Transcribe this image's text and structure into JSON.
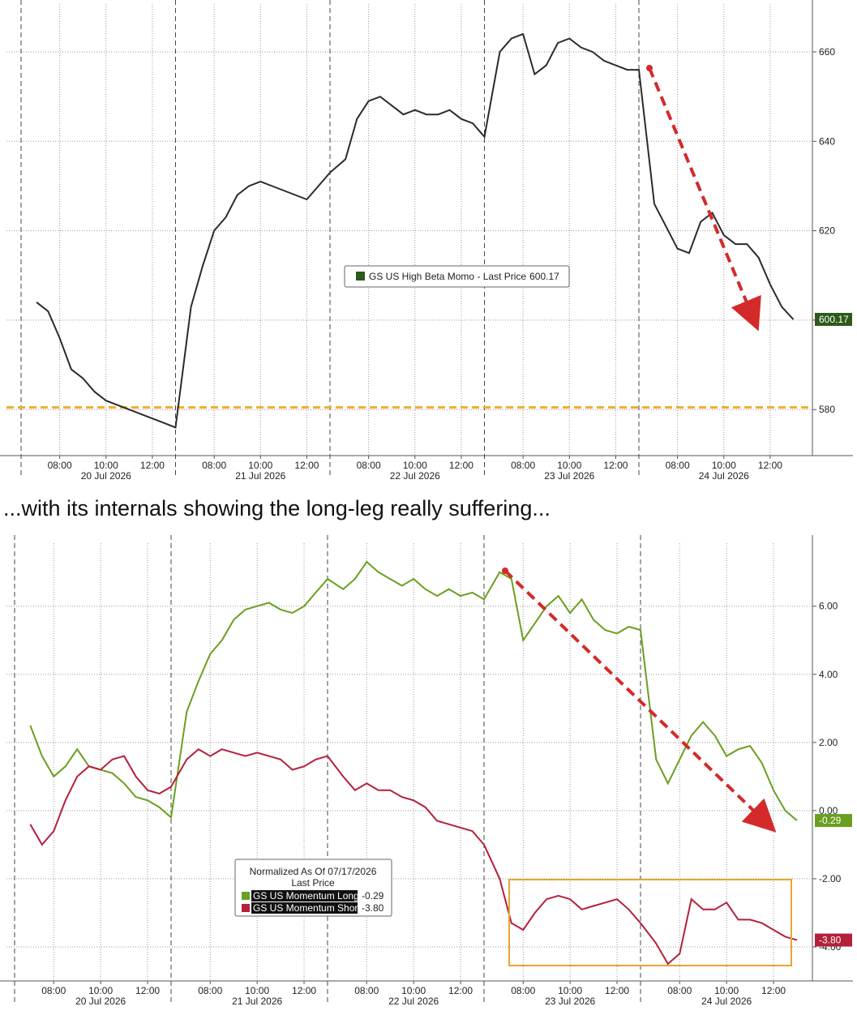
{
  "caption": "...with its internals showing the long-leg really suffering...",
  "chart_data": [
    {
      "type": "line",
      "x": [
        "20 Jul 2026 07:00",
        "20 Jul 2026 07:30",
        "20 Jul 2026 08:00",
        "20 Jul 2026 08:30",
        "20 Jul 2026 09:00",
        "20 Jul 2026 09:30",
        "20 Jul 2026 10:00",
        "20 Jul 2026 10:30",
        "20 Jul 2026 11:00",
        "20 Jul 2026 11:30",
        "20 Jul 2026 12:00",
        "20 Jul 2026 12:30",
        "20 Jul 2026 13:00",
        "21 Jul 2026 07:00",
        "21 Jul 2026 07:30",
        "21 Jul 2026 08:00",
        "21 Jul 2026 08:30",
        "21 Jul 2026 09:00",
        "21 Jul 2026 09:30",
        "21 Jul 2026 10:00",
        "21 Jul 2026 10:30",
        "21 Jul 2026 11:00",
        "21 Jul 2026 11:30",
        "21 Jul 2026 12:00",
        "21 Jul 2026 12:30",
        "21 Jul 2026 13:00",
        "22 Jul 2026 07:00",
        "22 Jul 2026 07:30",
        "22 Jul 2026 08:00",
        "22 Jul 2026 08:30",
        "22 Jul 2026 09:00",
        "22 Jul 2026 09:30",
        "22 Jul 2026 10:00",
        "22 Jul 2026 10:30",
        "22 Jul 2026 11:00",
        "22 Jul 2026 11:30",
        "22 Jul 2026 12:00",
        "22 Jul 2026 12:30",
        "22 Jul 2026 13:00",
        "23 Jul 2026 07:00",
        "23 Jul 2026 07:30",
        "23 Jul 2026 08:00",
        "23 Jul 2026 08:30",
        "23 Jul 2026 09:00",
        "23 Jul 2026 09:30",
        "23 Jul 2026 10:00",
        "23 Jul 2026 10:30",
        "23 Jul 2026 11:00",
        "23 Jul 2026 11:30",
        "23 Jul 2026 12:00",
        "23 Jul 2026 12:30",
        "23 Jul 2026 13:00",
        "24 Jul 2026 07:00",
        "24 Jul 2026 07:30",
        "24 Jul 2026 08:00",
        "24 Jul 2026 08:30",
        "24 Jul 2026 09:00",
        "24 Jul 2026 09:30",
        "24 Jul 2026 10:00",
        "24 Jul 2026 10:30",
        "24 Jul 2026 11:00",
        "24 Jul 2026 11:30",
        "24 Jul 2026 12:00",
        "24 Jul 2026 12:30",
        "24 Jul 2026 13:00"
      ],
      "xticks": [
        {
          "value": "20 Jul 2026 08:00",
          "label": "08:00"
        },
        {
          "value": "20 Jul 2026 10:00",
          "label": "10:00"
        },
        {
          "value": "20 Jul 2026 12:00",
          "label": "12:00"
        },
        {
          "value": "21 Jul 2026 08:00",
          "label": "08:00"
        },
        {
          "value": "21 Jul 2026 10:00",
          "label": "10:00"
        },
        {
          "value": "21 Jul 2026 12:00",
          "label": "12:00"
        },
        {
          "value": "22 Jul 2026 08:00",
          "label": "08:00"
        },
        {
          "value": "22 Jul 2026 10:00",
          "label": "10:00"
        },
        {
          "value": "22 Jul 2026 12:00",
          "label": "12:00"
        },
        {
          "value": "23 Jul 2026 08:00",
          "label": "08:00"
        },
        {
          "value": "23 Jul 2026 10:00",
          "label": "10:00"
        },
        {
          "value": "23 Jul 2026 12:00",
          "label": "12:00"
        },
        {
          "value": "24 Jul 2026 08:00",
          "label": "08:00"
        },
        {
          "value": "24 Jul 2026 10:00",
          "label": "10:00"
        },
        {
          "value": "24 Jul 2026 12:00",
          "label": "12:00"
        }
      ],
      "xgroups": [
        "20 Jul 2026",
        "21 Jul 2026",
        "22 Jul 2026",
        "23 Jul 2026",
        "24 Jul 2026"
      ],
      "ylim": [
        569.7,
        670.7
      ],
      "yticks": [
        580,
        600,
        620,
        640,
        660
      ],
      "grid": true,
      "legend_value_title": "Last Price",
      "series": [
        {
          "name": "GS US High Beta Momo",
          "color": "#2b2b2b",
          "tag_color": "#2d5a1b",
          "values": [
            604,
            602,
            596,
            589,
            587,
            584,
            582,
            581,
            580,
            579,
            578,
            577,
            576,
            603,
            612,
            620,
            623,
            628,
            630,
            631,
            630,
            629,
            628,
            627,
            630,
            633,
            636,
            645,
            649,
            650,
            648,
            646,
            647,
            646,
            646,
            647,
            645,
            644,
            641,
            660,
            663,
            664,
            655,
            657,
            662,
            663,
            661,
            660,
            658,
            657,
            656,
            656,
            626,
            621,
            616,
            615,
            622,
            624,
            619,
            617,
            617,
            614,
            608,
            603,
            600.17
          ]
        }
      ],
      "hlines": [
        {
          "value": 580.5,
          "color": "#f0b030"
        }
      ]
    },
    {
      "type": "line",
      "x": [
        "20 Jul 2026 07:00",
        "20 Jul 2026 07:30",
        "20 Jul 2026 08:00",
        "20 Jul 2026 08:30",
        "20 Jul 2026 09:00",
        "20 Jul 2026 09:30",
        "20 Jul 2026 10:00",
        "20 Jul 2026 10:30",
        "20 Jul 2026 11:00",
        "20 Jul 2026 11:30",
        "20 Jul 2026 12:00",
        "20 Jul 2026 12:30",
        "20 Jul 2026 13:00",
        "21 Jul 2026 07:00",
        "21 Jul 2026 07:30",
        "21 Jul 2026 08:00",
        "21 Jul 2026 08:30",
        "21 Jul 2026 09:00",
        "21 Jul 2026 09:30",
        "21 Jul 2026 10:00",
        "21 Jul 2026 10:30",
        "21 Jul 2026 11:00",
        "21 Jul 2026 11:30",
        "21 Jul 2026 12:00",
        "21 Jul 2026 12:30",
        "21 Jul 2026 13:00",
        "22 Jul 2026 07:00",
        "22 Jul 2026 07:30",
        "22 Jul 2026 08:00",
        "22 Jul 2026 08:30",
        "22 Jul 2026 09:00",
        "22 Jul 2026 09:30",
        "22 Jul 2026 10:00",
        "22 Jul 2026 10:30",
        "22 Jul 2026 11:00",
        "22 Jul 2026 11:30",
        "22 Jul 2026 12:00",
        "22 Jul 2026 12:30",
        "22 Jul 2026 13:00",
        "23 Jul 2026 07:00",
        "23 Jul 2026 07:30",
        "23 Jul 2026 08:00",
        "23 Jul 2026 08:30",
        "23 Jul 2026 09:00",
        "23 Jul 2026 09:30",
        "23 Jul 2026 10:00",
        "23 Jul 2026 10:30",
        "23 Jul 2026 11:00",
        "23 Jul 2026 11:30",
        "23 Jul 2026 12:00",
        "23 Jul 2026 12:30",
        "23 Jul 2026 13:00",
        "24 Jul 2026 07:00",
        "24 Jul 2026 07:30",
        "24 Jul 2026 08:00",
        "24 Jul 2026 08:30",
        "24 Jul 2026 09:00",
        "24 Jul 2026 09:30",
        "24 Jul 2026 10:00",
        "24 Jul 2026 10:30",
        "24 Jul 2026 11:00",
        "24 Jul 2026 11:30",
        "24 Jul 2026 12:00",
        "24 Jul 2026 12:30",
        "24 Jul 2026 13:00"
      ],
      "xticks": [
        {
          "value": "20 Jul 2026 08:00",
          "label": "08:00"
        },
        {
          "value": "20 Jul 2026 10:00",
          "label": "10:00"
        },
        {
          "value": "20 Jul 2026 12:00",
          "label": "12:00"
        },
        {
          "value": "21 Jul 2026 08:00",
          "label": "08:00"
        },
        {
          "value": "21 Jul 2026 10:00",
          "label": "10:00"
        },
        {
          "value": "21 Jul 2026 12:00",
          "label": "12:00"
        },
        {
          "value": "22 Jul 2026 08:00",
          "label": "08:00"
        },
        {
          "value": "22 Jul 2026 10:00",
          "label": "10:00"
        },
        {
          "value": "22 Jul 2026 12:00",
          "label": "12:00"
        },
        {
          "value": "23 Jul 2026 08:00",
          "label": "08:00"
        },
        {
          "value": "23 Jul 2026 10:00",
          "label": "10:00"
        },
        {
          "value": "23 Jul 2026 12:00",
          "label": "12:00"
        },
        {
          "value": "24 Jul 2026 08:00",
          "label": "08:00"
        },
        {
          "value": "24 Jul 2026 10:00",
          "label": "10:00"
        },
        {
          "value": "24 Jul 2026 12:00",
          "label": "12:00"
        }
      ],
      "xgroups": [
        "20 Jul 2026",
        "21 Jul 2026",
        "22 Jul 2026",
        "23 Jul 2026",
        "24 Jul 2026"
      ],
      "ylim": [
        -5,
        7.85
      ],
      "yticks": [
        {
          "value": -4,
          "label": "-4.00"
        },
        {
          "value": -2,
          "label": "-2.00"
        },
        {
          "value": 0,
          "label": "0.00"
        },
        {
          "value": 2,
          "label": "2.00"
        },
        {
          "value": 4,
          "label": "4.00"
        },
        {
          "value": 6,
          "label": "6.00"
        }
      ],
      "grid": true,
      "legend_title": "Normalized As Of 07/17/2026",
      "legend_value_title": "Last Price",
      "series": [
        {
          "name": "GS US Momentum Long",
          "color": "#6a9f1f",
          "values": [
            2.5,
            1.6,
            1.0,
            1.3,
            1.8,
            1.3,
            1.2,
            1.1,
            0.8,
            0.4,
            0.3,
            0.1,
            -0.2,
            2.9,
            3.8,
            4.6,
            5.0,
            5.6,
            5.9,
            6.0,
            6.1,
            5.9,
            5.8,
            6.0,
            6.4,
            6.8,
            6.5,
            6.8,
            7.3,
            7.0,
            6.8,
            6.6,
            6.8,
            6.5,
            6.3,
            6.5,
            6.3,
            6.4,
            6.2,
            7.0,
            6.8,
            5.0,
            5.5,
            6.0,
            6.3,
            5.8,
            6.2,
            5.6,
            5.3,
            5.2,
            5.4,
            5.3,
            1.5,
            0.8,
            1.5,
            2.2,
            2.6,
            2.2,
            1.6,
            1.8,
            1.9,
            1.4,
            0.6,
            0.0,
            -0.29
          ]
        },
        {
          "name": "GS US Momentum Short",
          "color": "#b5203a",
          "values": [
            -0.4,
            -1.0,
            -0.6,
            0.3,
            1.0,
            1.3,
            1.2,
            1.5,
            1.6,
            1.0,
            0.6,
            0.5,
            0.7,
            1.5,
            1.8,
            1.6,
            1.8,
            1.7,
            1.6,
            1.7,
            1.6,
            1.5,
            1.2,
            1.3,
            1.5,
            1.6,
            1.0,
            0.6,
            0.8,
            0.6,
            0.6,
            0.4,
            0.3,
            0.1,
            -0.3,
            -0.4,
            -0.5,
            -0.6,
            -1.0,
            -2.0,
            -3.3,
            -3.5,
            -3.0,
            -2.6,
            -2.5,
            -2.6,
            -2.9,
            -2.8,
            -2.7,
            -2.6,
            -2.9,
            -3.3,
            -3.9,
            -4.5,
            -4.2,
            -2.6,
            -2.9,
            -2.9,
            -2.7,
            -3.2,
            -3.2,
            -3.3,
            -3.5,
            -3.7,
            -3.8
          ],
          "value_labels": [
            null,
            null,
            null,
            null,
            null,
            null,
            null,
            null,
            null,
            null,
            null,
            null,
            null,
            null,
            null,
            null,
            null,
            null,
            null,
            null,
            null,
            null,
            null,
            null,
            null,
            null,
            null,
            null,
            null,
            null,
            null,
            null,
            null,
            null,
            null,
            null,
            null,
            null,
            null,
            null,
            null,
            null,
            null,
            null,
            null,
            null,
            null,
            null,
            null,
            null,
            null,
            null,
            null,
            null,
            null,
            null,
            null,
            null,
            null,
            null,
            null,
            null,
            null,
            null,
            "-3.80"
          ]
        }
      ]
    }
  ]
}
